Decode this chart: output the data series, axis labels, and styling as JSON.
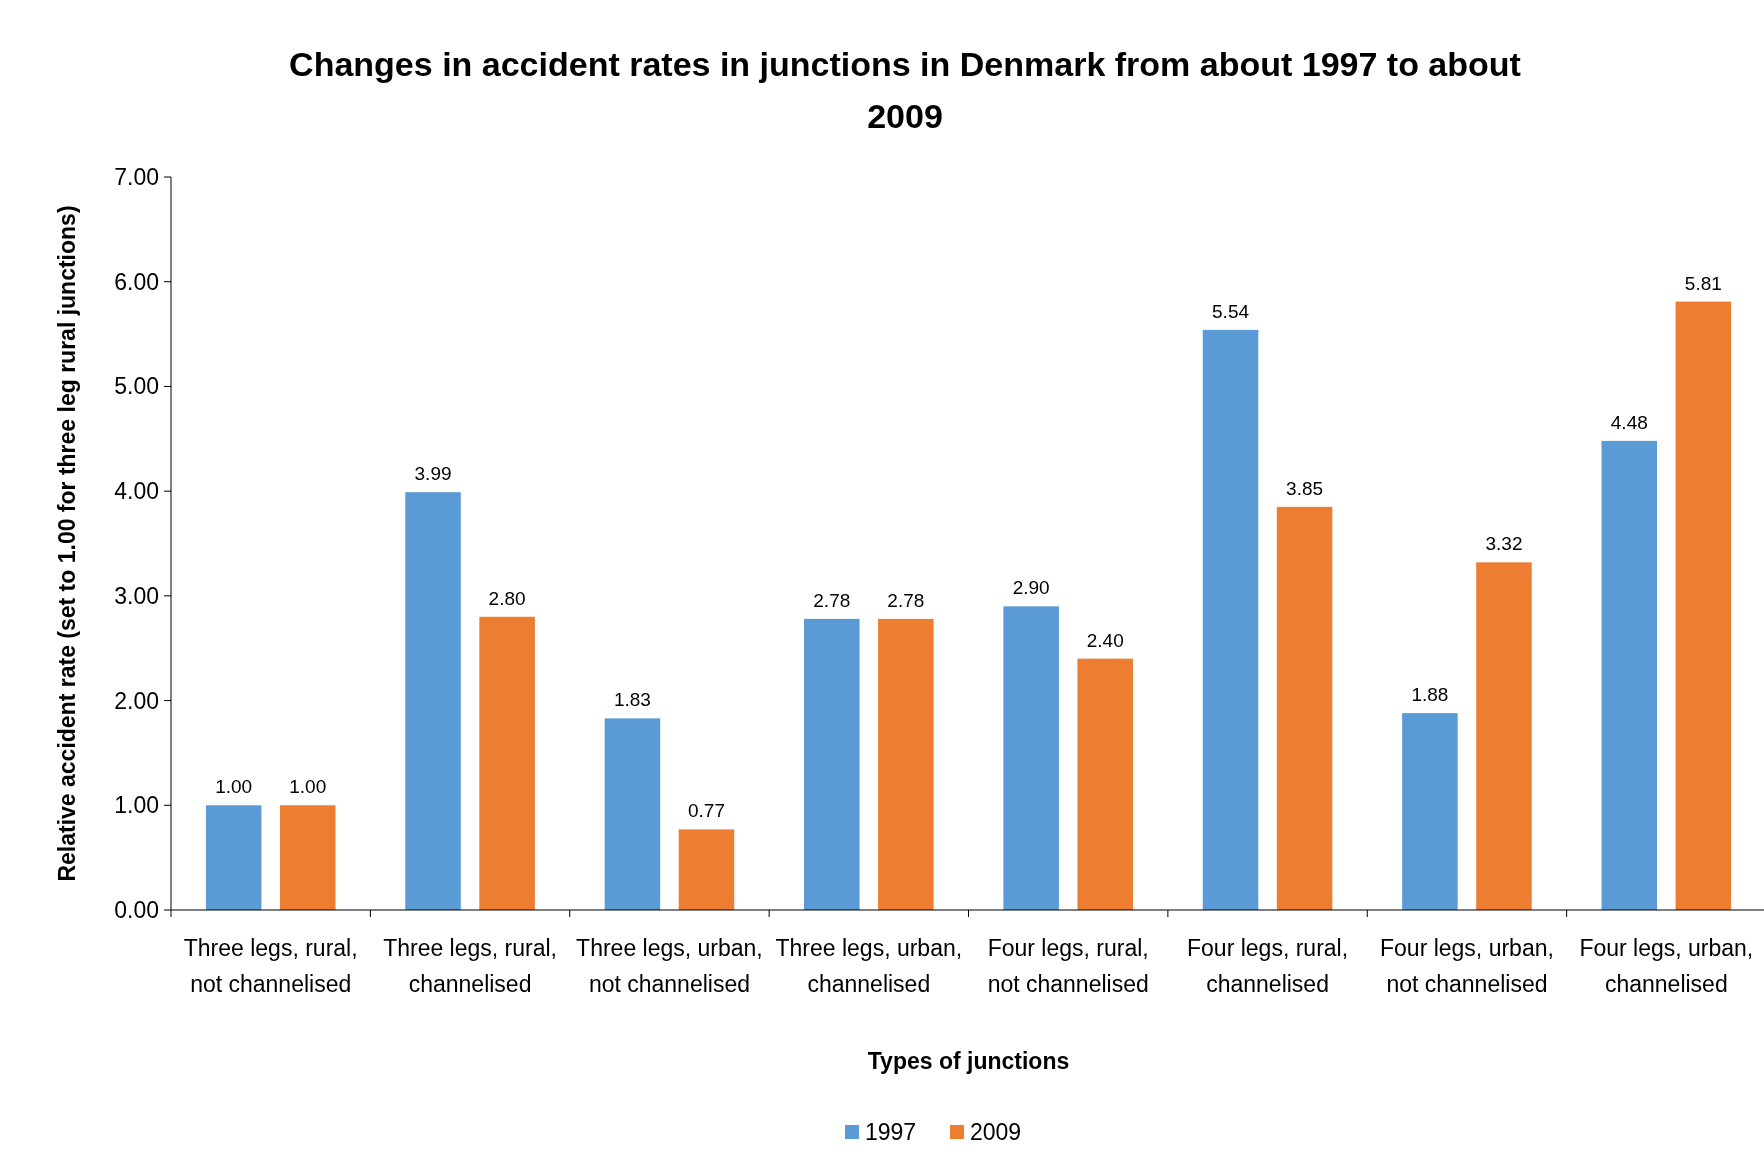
{
  "chart_data": {
    "type": "bar",
    "title": "Changes in accident rates in junctions in Denmark from about 1997 to about 2009",
    "xlabel": "Types of junctions",
    "ylabel": "Relative accident rate (set to 1.00 for three leg rural junctions)",
    "categories": [
      "Three legs, rural, not channelised",
      "Three legs, rural, channelised",
      "Three legs, urban, not channelised",
      "Three legs, urban, channelised",
      "Four legs, rural, not channelised",
      "Four legs, rural, channelised",
      "Four legs, urban, not channelised",
      "Four legs, urban, channelised"
    ],
    "series": [
      {
        "name": "1997",
        "color": "#5b9bd5",
        "values": [
          1.0,
          3.99,
          1.83,
          2.78,
          2.9,
          5.54,
          1.88,
          4.48
        ],
        "value_labels": [
          "1.00",
          "3.99",
          "1.83",
          "2.78",
          "2.90",
          "5.54",
          "1.88",
          "4.48"
        ]
      },
      {
        "name": "2009",
        "color": "#ed7d31",
        "values": [
          1.0,
          2.8,
          0.77,
          2.78,
          2.4,
          3.85,
          3.32,
          5.81
        ],
        "value_labels": [
          "1.00",
          "2.80",
          "0.77",
          "2.78",
          "2.40",
          "3.85",
          "3.32",
          "5.81"
        ]
      }
    ],
    "ylim": [
      0,
      7
    ],
    "yticks": [
      {
        "value": 0,
        "label": "0.00"
      },
      {
        "value": 1,
        "label": "1.00"
      },
      {
        "value": 2,
        "label": "2.00"
      },
      {
        "value": 3,
        "label": "3.00"
      },
      {
        "value": 4,
        "label": "4.00"
      },
      {
        "value": 5,
        "label": "5.00"
      },
      {
        "value": 6,
        "label": "6.00"
      },
      {
        "value": 7,
        "label": "7.00"
      }
    ],
    "grid": false,
    "legend": "bottom"
  }
}
